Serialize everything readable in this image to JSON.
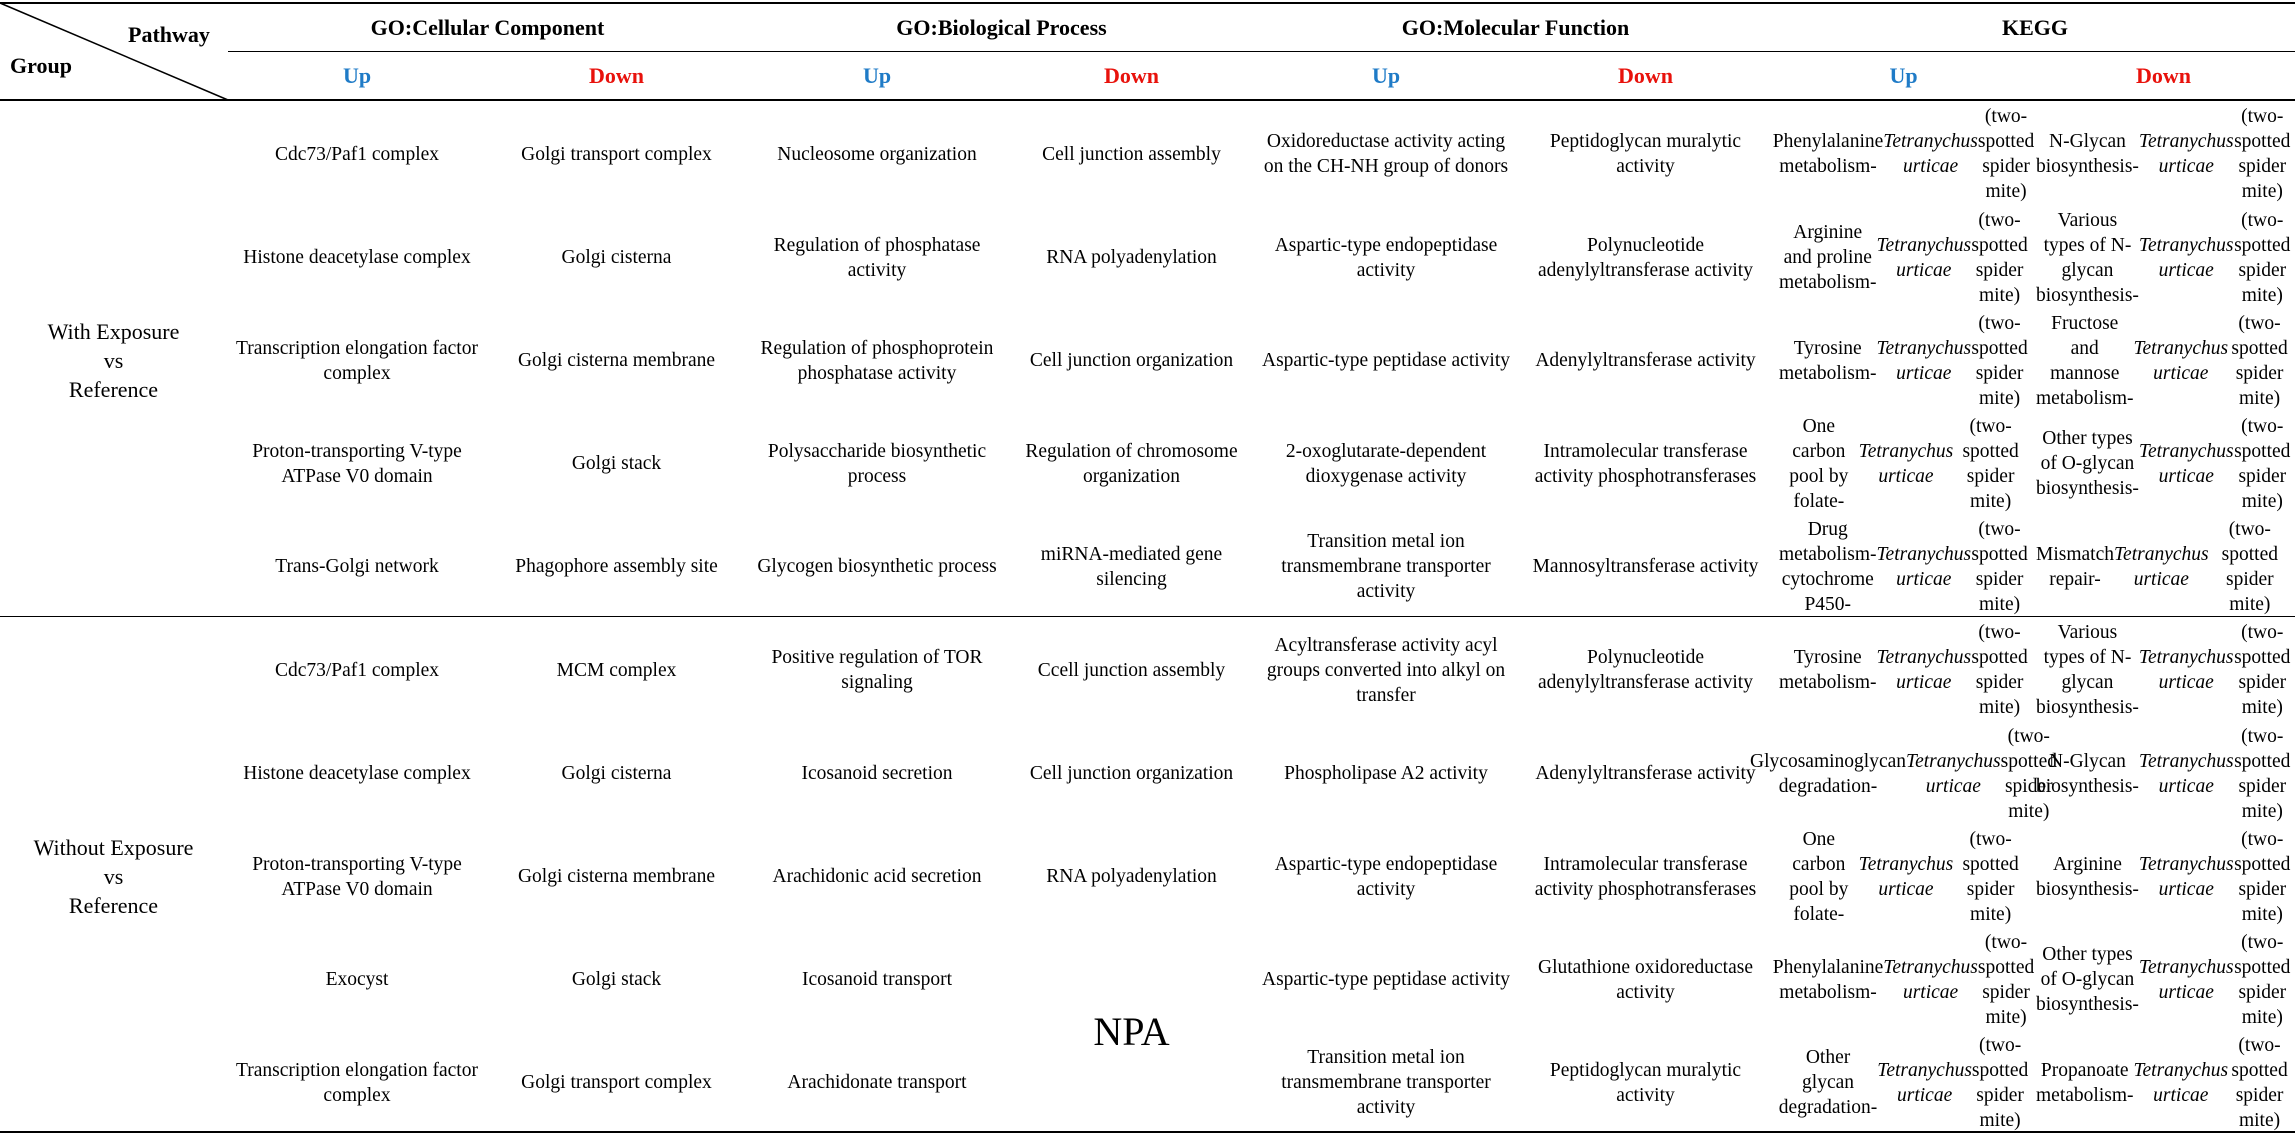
{
  "header": {
    "pathway_label": "Pathway",
    "group_label": "Group",
    "categories": [
      "GO:Cellular Component",
      "GO:Biological Process",
      "GO:Molecular Function",
      "KEGG"
    ],
    "up_label": "Up",
    "down_label": "Down"
  },
  "groups": [
    {
      "name_lines": [
        "With Exposure",
        "vs",
        "Reference"
      ],
      "rows": [
        [
          "Cdc73/Paf1 complex",
          "Golgi transport complex",
          "Nucleosome organization",
          "Cell junction assembly",
          "Oxidoreductase activity acting on the CH-NH group of donors",
          "Peptidoglycan muralytic activity",
          "Phenylalanine metabolism-<i>Tetranychus urticae</i> (two-spotted spider mite)",
          "N-Glycan biosynthesis-<i>Tetranychus urticae</i> (two-spotted spider mite)"
        ],
        [
          "Histone deacetylase complex",
          "Golgi cisterna",
          "Regulation of phosphatase activity",
          "RNA polyadenylation",
          "Aspartic-type endopeptidase activity",
          "Polynucleotide adenylyltransferase activity",
          "Arginine and proline metabolism-<i>Tetranychus urticae</i> (two-spotted spider mite)",
          "Various types of N-glycan biosynthesis-<i>Tetranychus urticae</i> (two-spotted spider mite)"
        ],
        [
          "Transcription elongation factor complex",
          "Golgi cisterna membrane",
          "Regulation of phosphoprotein phosphatase activity",
          "Cell junction organization",
          "Aspartic-type peptidase activity",
          "Adenylyltransferase activity",
          "Tyrosine metabolism-<i>Tetranychus urticae</i> (two-spotted spider mite)",
          "Fructose and mannose metabolism-<i>Tetranychus urticae</i> (two-spotted spider mite)"
        ],
        [
          "Proton-transporting V-type ATPase V0 domain",
          "Golgi stack",
          "Polysaccharide biosynthetic process",
          "Regulation of chromosome organization",
          "2-oxoglutarate-dependent dioxygenase activity",
          "Intramolecular transferase activity phosphotransferases",
          "One carbon pool by folate-<i>Tetranychus urticae</i> (two-spotted spider mite)",
          "Other types of O-glycan biosynthesis-<i>Tetranychus urticae</i> (two-spotted spider mite)"
        ],
        [
          "Trans-Golgi network",
          "Phagophore assembly site",
          "Glycogen biosynthetic process",
          "miRNA-mediated gene silencing",
          "Transition metal ion transmembrane transporter activity",
          "Mannosyltransferase activity",
          "Drug metabolism-cytochrome P450-<i>Tetranychus urticae</i> (two-spotted spider mite)",
          "Mismatch repair-<i>Tetranychus urticae</i> (two-spotted spider mite)"
        ]
      ]
    },
    {
      "name_lines": [
        "Without Exposure",
        "vs",
        "Reference"
      ],
      "rows": [
        [
          "Cdc73/Paf1 complex",
          "MCM complex",
          "Positive regulation of TOR signaling",
          "Ccell junction assembly",
          "Acyltransferase activity acyl groups converted into alkyl on transfer",
          "Polynucleotide adenylyltransferase activity",
          "Tyrosine metabolism-<i>Tetranychus urticae</i> (two-spotted spider mite)",
          "Various types of N-glycan biosynthesis-<i>Tetranychus urticae</i> (two-spotted spider mite)"
        ],
        [
          "Histone deacetylase complex",
          "Golgi cisterna",
          "Icosanoid secretion",
          "Cell junction organization",
          "Phospholipase A2 activity",
          "Adenylyltransferase activity",
          "Glycosaminoglycan degradation-<i>Tetranychus urticae</i> (two-spotted spider mite)",
          "N-Glycan biosynthesis-<i>Tetranychus urticae</i> (two-spotted spider mite)"
        ],
        [
          "Proton-transporting V-type ATPase V0 domain",
          "Golgi cisterna membrane",
          "Arachidonic acid secretion",
          "RNA polyadenylation",
          "Aspartic-type endopeptidase activity",
          "Intramolecular transferase activity phosphotransferases",
          "One carbon pool by folate-<i>Tetranychus urticae</i> (two-spotted spider mite)",
          "Arginine biosynthesis-<i>Tetranychus urticae</i> (two-spotted spider mite)"
        ],
        [
          "Exocyst",
          "Golgi stack",
          "Icosanoid transport",
          "",
          "Aspartic-type peptidase activity",
          "Glutathione oxidoreductase activity",
          "Phenylalanine metabolism-<i>Tetranychus urticae</i> (two-spotted spider mite)",
          "Other types of O-glycan biosynthesis-<i>Tetranychus urticae</i> (two-spotted spider mite)"
        ],
        [
          "Transcription elongation factor complex",
          "Golgi transport complex",
          "Arachidonate transport",
          "",
          "Transition metal ion transmembrane transporter activity",
          "Peptidoglycan muralytic activity",
          "Other glycan degradation-<i>Tetranychus urticae</i> (two-spotted spider mite)",
          "Propanoate metabolism-<i>Tetranychus urticae</i> (two-spotted spider mite)"
        ]
      ],
      "merged_note": "NPA"
    }
  ]
}
